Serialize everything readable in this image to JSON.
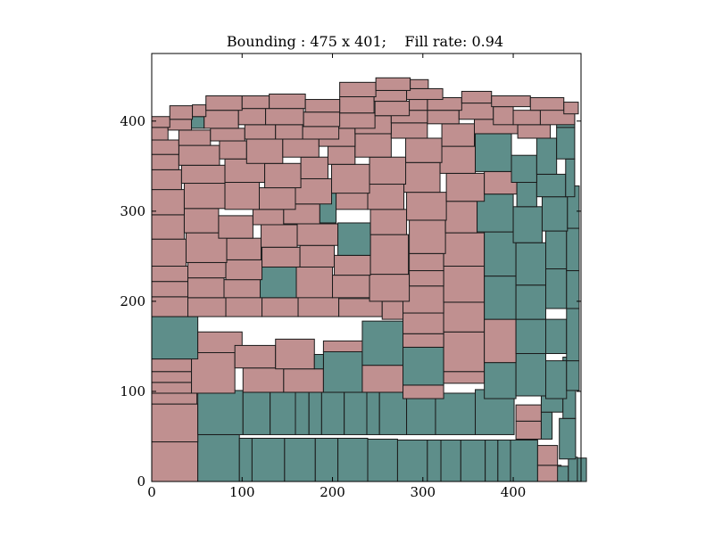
{
  "chart_data": {
    "type": "rectangle-packing",
    "title": "Bounding : 475 x 401;    Fill rate: 0.94",
    "bounding": {
      "width": 475,
      "height": 401
    },
    "fill_rate": 0.94,
    "xlim": [
      0,
      475
    ],
    "ylim": [
      0,
      475
    ],
    "xticks": [
      0,
      100,
      200,
      300,
      400
    ],
    "yticks": [
      0,
      100,
      200,
      300,
      400
    ],
    "grid": false,
    "colors": {
      "pink": "#c09090",
      "teal": "#5e8e8a",
      "edge": "#1a1a1a",
      "frame": "#000000"
    },
    "rects": [
      [
        0,
        0,
        51,
        44,
        "p"
      ],
      [
        51,
        0,
        46,
        52,
        "t"
      ],
      [
        97,
        0,
        14,
        48,
        "t"
      ],
      [
        111,
        0,
        36,
        48,
        "t"
      ],
      [
        147,
        0,
        34,
        48,
        "t"
      ],
      [
        181,
        0,
        25,
        48,
        "t"
      ],
      [
        206,
        0,
        33,
        48,
        "t"
      ],
      [
        239,
        0,
        33,
        47,
        "t"
      ],
      [
        272,
        0,
        33,
        46,
        "t"
      ],
      [
        305,
        0,
        15,
        46,
        "t"
      ],
      [
        320,
        0,
        22,
        46,
        "t"
      ],
      [
        342,
        0,
        27,
        46,
        "t"
      ],
      [
        369,
        0,
        14,
        46,
        "t"
      ],
      [
        383,
        0,
        14,
        46,
        "t"
      ],
      [
        397,
        0,
        30,
        46,
        "t"
      ],
      [
        427,
        0,
        26,
        18,
        "p"
      ],
      [
        427,
        18,
        22,
        22,
        "p"
      ],
      [
        449,
        0,
        12,
        17,
        "t"
      ],
      [
        461,
        0,
        10,
        27,
        "t"
      ],
      [
        471,
        0,
        10,
        26,
        "t"
      ],
      [
        0,
        44,
        51,
        42,
        "p"
      ],
      [
        51,
        52,
        50,
        49,
        "t"
      ],
      [
        101,
        52,
        30,
        47,
        "t"
      ],
      [
        131,
        52,
        28,
        47,
        "t"
      ],
      [
        159,
        52,
        15,
        47,
        "t"
      ],
      [
        174,
        52,
        14,
        47,
        "t"
      ],
      [
        188,
        52,
        25,
        47,
        "t"
      ],
      [
        213,
        52,
        25,
        47,
        "t"
      ],
      [
        238,
        52,
        14,
        47,
        "t"
      ],
      [
        252,
        52,
        30,
        47,
        "t"
      ],
      [
        282,
        52,
        32,
        46,
        "t"
      ],
      [
        314,
        52,
        44,
        46,
        "t"
      ],
      [
        358,
        52,
        43,
        50,
        "t"
      ],
      [
        403,
        47,
        28,
        20,
        "p"
      ],
      [
        403,
        67,
        28,
        18,
        "p"
      ],
      [
        431,
        47,
        12,
        30,
        "t"
      ],
      [
        451,
        25,
        18,
        45,
        "t"
      ],
      [
        431,
        77,
        24,
        47,
        "t"
      ],
      [
        455,
        70,
        14,
        34,
        "t"
      ],
      [
        455,
        104,
        14,
        34,
        "t"
      ],
      [
        0,
        86,
        50,
        12,
        "p"
      ],
      [
        0,
        98,
        44,
        12,
        "p"
      ],
      [
        0,
        110,
        44,
        12,
        "p"
      ],
      [
        0,
        122,
        44,
        14,
        "p"
      ],
      [
        44,
        98,
        48,
        45,
        "p"
      ],
      [
        101,
        99,
        45,
        27,
        "p"
      ],
      [
        146,
        99,
        44,
        26,
        "p"
      ],
      [
        190,
        99,
        43,
        45,
        "t"
      ],
      [
        233,
        99,
        45,
        30,
        "p"
      ],
      [
        278,
        92,
        45,
        15,
        "p"
      ],
      [
        278,
        107,
        45,
        42,
        "t"
      ],
      [
        323,
        109,
        45,
        13,
        "p"
      ],
      [
        323,
        122,
        45,
        44,
        "p"
      ],
      [
        368,
        92,
        35,
        40,
        "t"
      ],
      [
        403,
        95,
        33,
        47,
        "t"
      ],
      [
        436,
        92,
        23,
        42,
        "t"
      ],
      [
        459,
        101,
        14,
        33,
        "t"
      ],
      [
        0,
        136,
        51,
        47,
        "t"
      ],
      [
        51,
        143,
        49,
        23,
        "p"
      ],
      [
        92,
        126,
        45,
        25,
        "p"
      ],
      [
        137,
        125,
        43,
        33,
        "p"
      ],
      [
        180,
        125,
        10,
        16,
        "t"
      ],
      [
        190,
        144,
        44,
        12,
        "p"
      ],
      [
        233,
        129,
        45,
        49,
        "t"
      ],
      [
        278,
        149,
        45,
        15,
        "p"
      ],
      [
        278,
        164,
        45,
        23,
        "p"
      ],
      [
        323,
        166,
        45,
        33,
        "p"
      ],
      [
        368,
        132,
        35,
        48,
        "p"
      ],
      [
        403,
        142,
        33,
        38,
        "t"
      ],
      [
        436,
        142,
        23,
        38,
        "t"
      ],
      [
        459,
        134,
        14,
        58,
        "t"
      ],
      [
        0,
        183,
        40,
        22,
        "p"
      ],
      [
        40,
        183,
        42,
        21,
        "p"
      ],
      [
        82,
        183,
        40,
        41,
        "p"
      ],
      [
        122,
        183,
        40,
        21,
        "p"
      ],
      [
        162,
        183,
        45,
        41,
        "p"
      ],
      [
        207,
        183,
        48,
        20,
        "p"
      ],
      [
        255,
        180,
        23,
        20,
        "p"
      ],
      [
        278,
        187,
        45,
        30,
        "p"
      ],
      [
        323,
        199,
        45,
        40,
        "p"
      ],
      [
        368,
        180,
        35,
        48,
        "t"
      ],
      [
        403,
        180,
        33,
        38,
        "t"
      ],
      [
        436,
        192,
        23,
        44,
        "t"
      ],
      [
        459,
        192,
        14,
        42,
        "t"
      ],
      [
        0,
        205,
        40,
        17,
        "p"
      ],
      [
        40,
        204,
        40,
        22,
        "p"
      ],
      [
        80,
        204,
        40,
        20,
        "p"
      ],
      [
        120,
        204,
        40,
        34,
        "t"
      ],
      [
        160,
        204,
        40,
        34,
        "p"
      ],
      [
        200,
        204,
        41,
        25,
        "p"
      ],
      [
        241,
        200,
        44,
        30,
        "p"
      ],
      [
        285,
        217,
        38,
        17,
        "p"
      ],
      [
        285,
        234,
        38,
        19,
        "p"
      ],
      [
        323,
        239,
        45,
        37,
        "p"
      ],
      [
        368,
        228,
        35,
        49,
        "t"
      ],
      [
        403,
        218,
        33,
        47,
        "t"
      ],
      [
        436,
        236,
        23,
        42,
        "t"
      ],
      [
        459,
        234,
        14,
        47,
        "t"
      ],
      [
        0,
        222,
        40,
        17,
        "p"
      ],
      [
        40,
        226,
        42,
        17,
        "p"
      ],
      [
        82,
        224,
        40,
        22,
        "p"
      ],
      [
        122,
        238,
        42,
        22,
        "p"
      ],
      [
        164,
        238,
        38,
        24,
        "p"
      ],
      [
        202,
        229,
        40,
        22,
        "p"
      ],
      [
        242,
        230,
        42,
        44,
        "p"
      ],
      [
        285,
        253,
        40,
        37,
        "p"
      ],
      [
        325,
        276,
        35,
        35,
        "p"
      ],
      [
        360,
        277,
        40,
        42,
        "t"
      ],
      [
        400,
        265,
        32,
        40,
        "t"
      ],
      [
        432,
        278,
        28,
        38,
        "t"
      ],
      [
        460,
        281,
        13,
        47,
        "t"
      ],
      [
        0,
        239,
        38,
        30,
        "p"
      ],
      [
        38,
        243,
        45,
        33,
        "p"
      ],
      [
        83,
        246,
        38,
        24,
        "p"
      ],
      [
        121,
        260,
        40,
        25,
        "p"
      ],
      [
        161,
        262,
        45,
        24,
        "p"
      ],
      [
        206,
        251,
        36,
        36,
        "t"
      ],
      [
        242,
        274,
        40,
        28,
        "p"
      ],
      [
        282,
        290,
        44,
        31,
        "p"
      ],
      [
        326,
        311,
        42,
        31,
        "p"
      ],
      [
        368,
        319,
        36,
        25,
        "p"
      ],
      [
        404,
        305,
        22,
        27,
        "t"
      ],
      [
        426,
        316,
        32,
        25,
        "t"
      ],
      [
        458,
        316,
        10,
        42,
        "t"
      ],
      [
        0,
        269,
        36,
        27,
        "p"
      ],
      [
        36,
        276,
        38,
        27,
        "p"
      ],
      [
        74,
        270,
        38,
        25,
        "p"
      ],
      [
        112,
        285,
        34,
        17,
        "p"
      ],
      [
        146,
        286,
        40,
        22,
        "p"
      ],
      [
        186,
        287,
        18,
        33,
        "t"
      ],
      [
        204,
        302,
        35,
        32,
        "p"
      ],
      [
        239,
        302,
        40,
        28,
        "p"
      ],
      [
        279,
        321,
        40,
        33,
        "p"
      ],
      [
        319,
        342,
        39,
        30,
        "p"
      ],
      [
        358,
        344,
        40,
        42,
        "t"
      ],
      [
        398,
        332,
        28,
        30,
        "t"
      ],
      [
        426,
        341,
        22,
        40,
        "t"
      ],
      [
        448,
        358,
        20,
        35,
        "t"
      ],
      [
        0,
        296,
        36,
        28,
        "p"
      ],
      [
        36,
        303,
        45,
        28,
        "p"
      ],
      [
        81,
        302,
        38,
        30,
        "p"
      ],
      [
        119,
        302,
        40,
        24,
        "p"
      ],
      [
        159,
        308,
        40,
        28,
        "p"
      ],
      [
        199,
        320,
        42,
        32,
        "p"
      ],
      [
        241,
        330,
        40,
        30,
        "p"
      ],
      [
        281,
        354,
        40,
        27,
        "p"
      ],
      [
        321,
        372,
        36,
        25,
        "p"
      ],
      [
        357,
        386,
        48,
        16,
        "p"
      ],
      [
        405,
        381,
        36,
        15,
        "p"
      ],
      [
        448,
        393,
        20,
        15,
        "t"
      ],
      [
        0,
        324,
        33,
        22,
        "p"
      ],
      [
        33,
        331,
        48,
        20,
        "p"
      ],
      [
        81,
        332,
        44,
        26,
        "p"
      ],
      [
        125,
        326,
        40,
        27,
        "p"
      ],
      [
        165,
        336,
        30,
        24,
        "p"
      ],
      [
        195,
        352,
        30,
        20,
        "p"
      ],
      [
        225,
        360,
        40,
        26,
        "p"
      ],
      [
        265,
        381,
        40,
        17,
        "p"
      ],
      [
        305,
        397,
        35,
        15,
        "p"
      ],
      [
        340,
        402,
        38,
        18,
        "p"
      ],
      [
        378,
        396,
        22,
        20,
        "p"
      ],
      [
        400,
        396,
        30,
        16,
        "p"
      ],
      [
        430,
        396,
        38,
        20,
        "p"
      ],
      [
        0,
        346,
        30,
        17,
        "p"
      ],
      [
        30,
        351,
        45,
        22,
        "p"
      ],
      [
        75,
        358,
        30,
        20,
        "p"
      ],
      [
        105,
        353,
        40,
        27,
        "p"
      ],
      [
        145,
        360,
        40,
        20,
        "p"
      ],
      [
        185,
        372,
        40,
        20,
        "p"
      ],
      [
        225,
        386,
        40,
        20,
        "p"
      ],
      [
        265,
        398,
        40,
        14,
        "p"
      ],
      [
        305,
        412,
        38,
        14,
        "p"
      ],
      [
        343,
        420,
        33,
        13,
        "p"
      ],
      [
        376,
        416,
        43,
        12,
        "p"
      ],
      [
        419,
        412,
        37,
        14,
        "p"
      ],
      [
        456,
        408,
        16,
        13,
        "p"
      ],
      [
        0,
        363,
        30,
        16,
        "p"
      ],
      [
        30,
        373,
        35,
        17,
        "p"
      ],
      [
        65,
        378,
        38,
        14,
        "p"
      ],
      [
        103,
        380,
        34,
        16,
        "p"
      ],
      [
        137,
        380,
        30,
        16,
        "p"
      ],
      [
        167,
        380,
        40,
        14,
        "p"
      ],
      [
        207,
        392,
        40,
        17,
        "p"
      ],
      [
        247,
        406,
        38,
        16,
        "p"
      ],
      [
        285,
        412,
        20,
        12,
        "p"
      ],
      [
        0,
        379,
        18,
        14,
        "p"
      ],
      [
        18,
        390,
        26,
        12,
        "p"
      ],
      [
        44,
        392,
        14,
        13,
        "t"
      ],
      [
        58,
        392,
        38,
        20,
        "p"
      ],
      [
        96,
        396,
        30,
        18,
        "p"
      ],
      [
        126,
        396,
        42,
        18,
        "p"
      ],
      [
        168,
        394,
        40,
        16,
        "p"
      ],
      [
        208,
        409,
        38,
        18,
        "p"
      ],
      [
        246,
        422,
        36,
        12,
        "p"
      ],
      [
        282,
        424,
        40,
        12,
        "p"
      ],
      [
        0,
        393,
        20,
        12,
        "p"
      ],
      [
        20,
        402,
        25,
        15,
        "p"
      ],
      [
        45,
        405,
        15,
        13,
        "p"
      ],
      [
        60,
        412,
        40,
        16,
        "p"
      ],
      [
        100,
        414,
        30,
        14,
        "p"
      ],
      [
        130,
        414,
        40,
        16,
        "p"
      ],
      [
        170,
        410,
        38,
        14,
        "p"
      ],
      [
        208,
        427,
        40,
        16,
        "p"
      ],
      [
        248,
        434,
        38,
        14,
        "p"
      ],
      [
        286,
        436,
        20,
        10,
        "p"
      ]
    ]
  }
}
